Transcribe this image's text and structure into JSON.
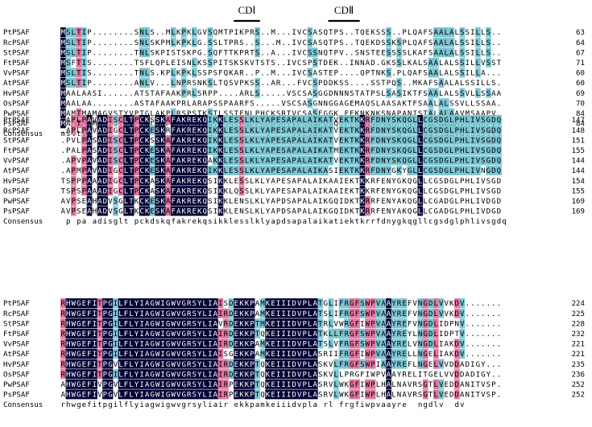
{
  "colors": {
    "identical": "#000033",
    "high": "#e1759f",
    "partial": "#7cc6d3",
    "text_on_dark": "#ffffff",
    "text": "#000000"
  },
  "domains": [
    {
      "label": "CDⅠ",
      "start": 33,
      "end": 37
    },
    {
      "label": "CDⅡ",
      "start": 51,
      "end": 56
    }
  ],
  "blocks": [
    {
      "rows": [
        {
          "name": "PtPSAF",
          "seq": "MSLTIP........SNLS..MLKPKLGVSQMTPIKPRS..M...IVCSASQTPS..TQEKSSS..PLQAFSAALALSSILLS...",
          "end": "63"
        },
        {
          "name": "RcPSAF",
          "seq": "MSLTIP........SNLSKPMLKPKLG.SSLTPRS..S...M..IVCSASQTPS..TQEKDSSKSPLQAFSAALALSSILLS...",
          "end": "64"
        },
        {
          "name": "StPSAF",
          "seq": "MSLTIP........TNLSKPISTSKPG.SQFTTKPRTS..A...IVCSSNQTPV..SNSTEESSSSLKAFSAALALSSILLS..A",
          "end": "67"
        },
        {
          "name": "FtPSAF",
          "seq": "MSFTIS........TSFLQPLEISNLKSSPITSKSKVTSTS..IVCSPSTDEK..INNAD.GKSSLKALSAALALSSILLVSSTV",
          "end": "71"
        },
        {
          "name": "VvPSAF",
          "seq": "MSLTIS........TNLS.KPLKPKLSSPSFQKAR..P..M...IVCSASTEP....QPTNKS.PLQAFSAALALSSILLA....",
          "end": "60"
        },
        {
          "name": "AtPSAF",
          "seq": "MSLTIP........ANLV...LNPRSNKSLTQSVPKSS..AR...FVCSPDDKSS....SSTPQS..MKAFSAALALSSILLS...",
          "end": "60"
        },
        {
          "name": "HvPSAF",
          "seq": "MAALAASI......ATSTAFAAKPRLSRPP....ARLS.....VSCSASGGDNNNSTATPSLSASIKTFSAALALSSVLLSSAA",
          "end": "69"
        },
        {
          "name": "OsPSAF",
          "seq": "MAALAA........ASTAFAAKPRLARAPSSPAARFS.....VSCSASGNNGGAGEMAQSLAASAKTFSAALALSSVLLSSAA",
          "end": "70"
        },
        {
          "name": "PwPSAF",
          "seq": "MAMTMAMAGVSTYVPTGLAKPLRSPSTKSTLSSTFNLPHCKSRTVCSASEGGK.EEKNKNKSNAPANISTALALAAVMSAAPV",
          "end": "84"
        },
        {
          "name": "PsPSAF",
          "seq": "MAMTMAMAGVSTYVPTGLAKPLRSPSTKSTLSSTFNLPHCKSRTVCSASEGGQ.EEKNKNKSNAPANISTALALAAVMSAAPV",
          "end": "84"
        }
      ],
      "consensus": "msltip        tnl  p  kp l  s          s    ivcsas              s   lkafsaalalssills"
    },
    {
      "rows": [
        {
          "name": "PtPSAF",
          "seq": ".APLPAVADISCLTPCKSSKAFAKREKQIKKLESSLKLYAPESAPALAIKATVEKTKKRFDNYSKQGLLCGSDGLPHLIVSGDQ",
          "end": "147"
        },
        {
          "name": "RcPSAF",
          "seq": ".APLPAVADIGCLTPCKESKRFAKREKQIKKLESSLKLYAPESAPALAIKATVEKTKKRFDNYSKQGLLCGSDGLPHLIVSGDQ",
          "end": "148"
        },
        {
          "name": "StPSAF",
          "seq": ".PVLPASADISCLTPCKSSKAFAKREKQIKKLESSLKLYAPESAPALAIKATVEKTKKRFDNYSKQGLLCGSDGLPHLIVSGDQ",
          "end": "151"
        },
        {
          "name": "FtPSAF",
          "seq": ".PALPASADISCLTPCKESKAFAKREKQIKKLESSLKLYAPESAPALAIKATMEKTKKRFDNYSKQGLLCGSDGLPHLIVSGDQ",
          "end": "155"
        },
        {
          "name": "VvPSAF",
          "seq": ".APVPAVADISCLTPCKESKAFAKREKQAKKLESSLKLYAPESAPALAIKATVEKTKKRFDNYSKQGLLCGSDGLPHLIVSGDQ",
          "end": "144"
        },
        {
          "name": "AtPSAF",
          "seq": ".APMPAVADIGCLTPCKESKAFAKREKQIKKLESSLKLYAPESAPALAIKASIEKTKKRFDNYGKYGLLCGSDGLPHLIVNGDQ",
          "end": "144"
        },
        {
          "name": "HvPSAF",
          "seq": "TSPPPAAADIGCLTPCKASKAFAKREKQSIKKLESSLKLYAPESAPALAIKAAIEKTKKRFENYGKQGLLCGSDGLPHLIVSGDQ",
          "end": "154"
        },
        {
          "name": "OsPSAF",
          "seq": "TSPSPAAADIGCLTPCKASKAFAKREKQSIKKLQSSLKLYAPESAPALAIKAAIEKTKKRFENYGKQGLLCGSDGLPHLIVSGDQ",
          "end": "155"
        },
        {
          "name": "PwPSAF",
          "seq": "AVPSEAHADVSGLTKCKESKAFAKREKQSIKKLENSLKLYAPDSAPALAIKGQIDKTKRRFENYAKQGLLCGADGLPHLIVDGDQ",
          "end": "169"
        },
        {
          "name": "PsPSAF",
          "seq": "AVPSEAHADVSGLTKCKESKAFAKREKQSIKKLENSLKLYAPDSAPALAIKGQIDKTKRRFENYAKQGLLCGADGLPHLIVDGDQ",
          "end": "169"
        }
      ],
      "consensus": " p pa adisglt pckdskqfakrekqsikklesslklyapdsapalaikatiektkrrfdnygkqgllcgsdglphlivsgdq"
    },
    {
      "rows": [
        {
          "name": "PtPSAF",
          "seq": "RHWGEFITPGILFLYIAGWIGWVGRSYLIAISDEKKPAMKEIIIDVPLATGLIFRGFSWPVAAYREFVNGDLVVKDV......",
          "end": "224"
        },
        {
          "name": "RcPSAF",
          "seq": "RHWGEFITPGILFLYIAGWIGWVGRSYLIAIRDEKKPAMKEIIIDVPLATSLIFRGFSWPVAAYREFVNGDLVVKDV......",
          "end": "225"
        },
        {
          "name": "StPSAF",
          "seq": "RHWGEFITPGILFLYIAGWIGWVGRSYLIAVRDEKKPTMKEIIIDVPLATRLVWRGFIWPVAAYREFVNGDLIDPNV......",
          "end": "228"
        },
        {
          "name": "FtPSAF",
          "seq": "RHWGEFITPGILFLYIAGWIGWVGRSYLIAIRDEKKPTQKEIIIDVPLATKLLFRGFSWPVAAYREYLNGDLIDPTV......",
          "end": "232"
        },
        {
          "name": "VvPSAF",
          "seq": "RHWGEFITPGILFLYIAGWIGWVGRSYLIAIRDEKKPAMKEIIIDVPLATSLVFRGFSWPVAAYRELVNGDLIAKDV......",
          "end": "221"
        },
        {
          "name": "AtPSAF",
          "seq": "RHWGEFITPGILFLYIAGWIGWVGRSYLIAISGEKKPAMKEIIIDVPLASRIIFRGFIWPVAAYRELLNGELIAKDV......",
          "end": "221"
        },
        {
          "name": "HvPSAF",
          "seq": "RHWGEFITPGVLFLYIAGWIGWVGRSYLIAIRDEKKPTQKEIIIDVPLASKVLFRGFSWPIAAYREFLNGELVVDDADIGY...",
          "end": "235"
        },
        {
          "name": "OsPSAF",
          "seq": "RHWGEFITPGILFLYIAGWIGWVGRSYLIAIRDEKKPTQKEIIIDVPLASKVLLPRGFIWPVAAYRELITGELVVDDADIGY..",
          "end": "236"
        },
        {
          "name": "PwPSAF",
          "seq": "AHWGEFIVPGVLFLYIAGWIGWVGRSYLIAIRPEKKPTQKEIIIDVPLASRVLWKGFIWPLHALNAVRSGTLVEDDANITVSP",
          "end": "252"
        },
        {
          "name": "PsPSAF",
          "seq": "AHWGEFIVPGVLFLYIAGWIGWVGRSYLIAIRPEKKPTQKEIIIDVPLASRVLWKGFIWPLHALNAVRSGTLVEDDANITVSP",
          "end": "252"
        }
      ],
      "consensus": "rhwgefitpgilflyiagwigwvgrsyliair ekkpamkeiiidvpla rl frgfiwpvaayre  ngdlv  dv"
    }
  ],
  "consensus_label": "Consensus"
}
